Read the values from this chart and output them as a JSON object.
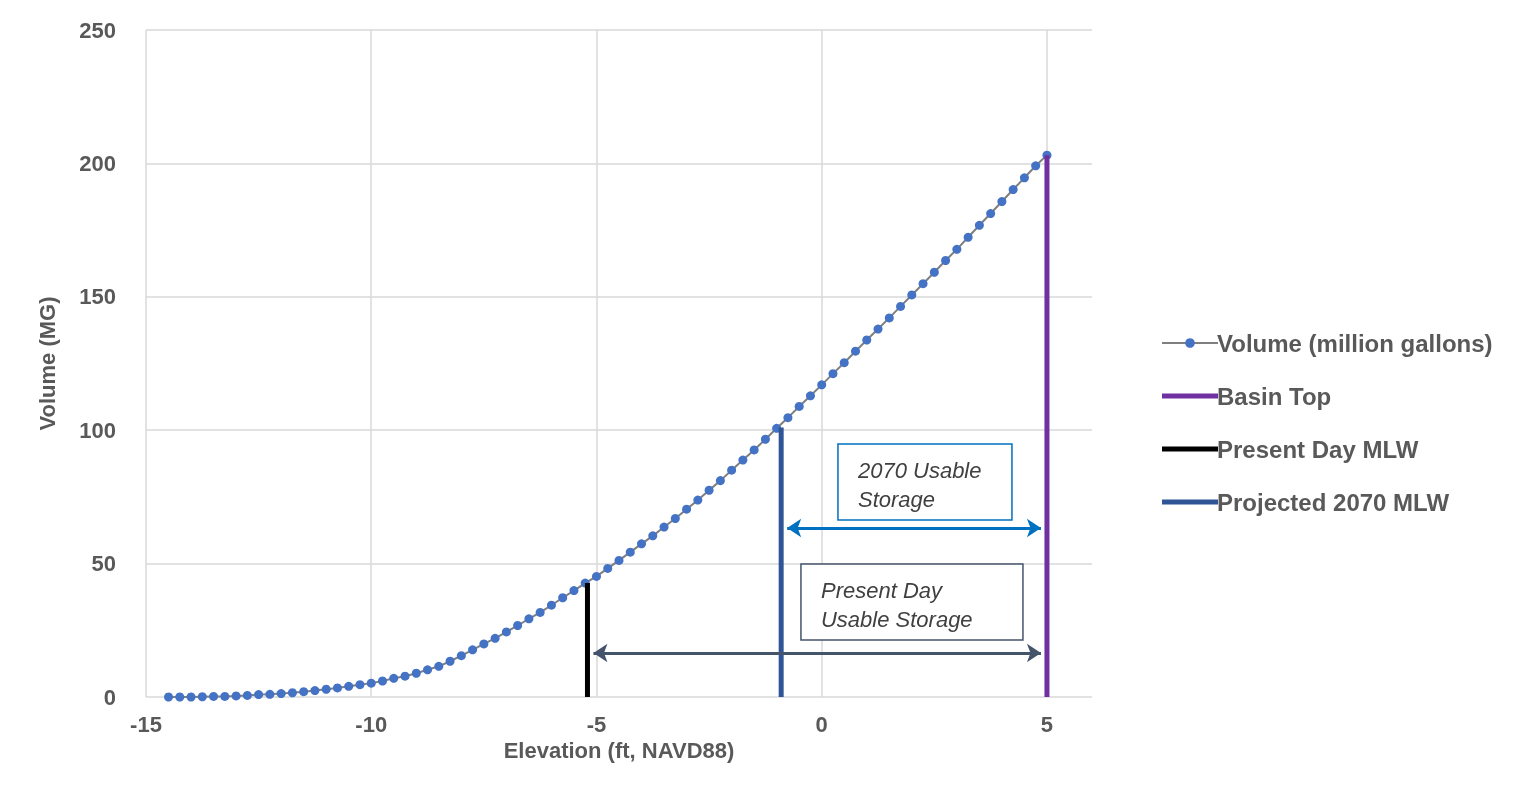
{
  "chart_data": {
    "type": "line",
    "xlabel": "Elevation (ft, NAVD88)",
    "ylabel": "Volume (MG)",
    "xlim": [
      -15,
      6
    ],
    "xticks": [
      -15,
      -10,
      -5,
      0,
      5
    ],
    "ylim": [
      0,
      250
    ],
    "yticks": [
      0,
      50,
      100,
      150,
      200,
      250
    ],
    "grid": true,
    "legend": "right",
    "marker": "circle",
    "series": [
      {
        "name": "Volume (million gallons)",
        "color": "#4472c4",
        "x": [
          -14.5,
          -14.25,
          -14,
          -13.75,
          -13.5,
          -13.25,
          -13,
          -12.75,
          -12.5,
          -12.25,
          -12,
          -11.75,
          -11.5,
          -11.25,
          -11,
          -10.75,
          -10.5,
          -10.25,
          -10,
          -9.75,
          -9.5,
          -9.25,
          -9,
          -8.75,
          -8.5,
          -8.25,
          -8,
          -7.75,
          -7.5,
          -7.25,
          -7,
          -6.75,
          -6.5,
          -6.25,
          -6,
          -5.75,
          -5.5,
          -5.25,
          -5,
          -4.75,
          -4.5,
          -4.25,
          -4,
          -3.75,
          -3.5,
          -3.25,
          -3,
          -2.75,
          -2.5,
          -2.25,
          -2,
          -1.75,
          -1.5,
          -1.25,
          -1,
          -0.75,
          -0.5,
          -0.25,
          0,
          0.25,
          0.5,
          0.75,
          1,
          1.25,
          1.5,
          1.75,
          2,
          2.25,
          2.5,
          2.75,
          3,
          3.25,
          3.5,
          3.75,
          4,
          4.25,
          4.5,
          4.75,
          5
        ],
        "values": [
          0,
          0,
          0,
          0.1,
          0.2,
          0.2,
          0.4,
          0.6,
          0.9,
          1,
          1.3,
          1.6,
          2,
          2.4,
          2.9,
          3.4,
          4,
          4.6,
          5.2,
          6,
          7,
          7.8,
          8.9,
          10.2,
          11.5,
          13.4,
          15.5,
          17.7,
          19.9,
          22,
          24.4,
          26.8,
          29.3,
          31.7,
          34.4,
          37.2,
          39.9,
          42.7,
          45.2,
          48.2,
          51.2,
          54.3,
          57.4,
          60.4,
          63.7,
          66.9,
          70.4,
          73.8,
          77.5,
          81.1,
          85,
          88.8,
          92.6,
          96.6,
          100.7,
          104.7,
          108.9,
          112.9,
          117,
          121.2,
          125.3,
          129.6,
          133.8,
          137.9,
          142.1,
          146.4,
          150.7,
          154.9,
          159.2,
          163.6,
          167.8,
          172.3,
          176.8,
          181.2,
          185.7,
          190.2,
          194.6,
          199.1,
          203.1
        ]
      },
      {
        "name": "Basin Top",
        "color": "#7030a0",
        "marker": "none",
        "x": [
          5,
          5
        ],
        "values": [
          0,
          203.1
        ]
      },
      {
        "name": "Present Day MLW",
        "color": "#000000",
        "marker": "none",
        "x": [
          -5.2,
          -5.2
        ],
        "values": [
          0,
          42.7
        ]
      },
      {
        "name": "Projected 2070 MLW",
        "color": "#2f5597",
        "marker": "none",
        "x": [
          -0.9,
          -0.9
        ],
        "values": [
          0,
          101
        ]
      }
    ],
    "annotations": [
      "2070 Usable Storage",
      "Present Day Usable Storage"
    ]
  }
}
